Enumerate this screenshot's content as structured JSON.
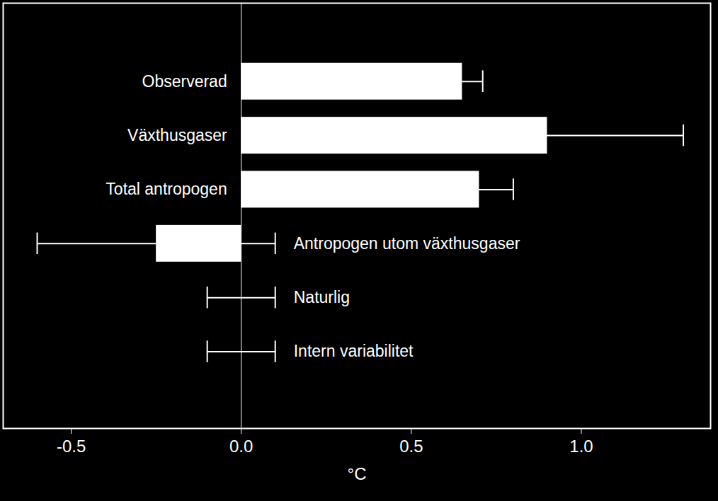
{
  "chart_data": {
    "type": "bar",
    "orientation": "horizontal",
    "categories": [
      "Observerad",
      "Växthusgaser",
      "Total antropogen",
      "Antropogen utom växthusgaser",
      "Naturlig",
      "Intern variabilitet"
    ],
    "values": [
      0.65,
      0.9,
      0.7,
      -0.25,
      0,
      null
    ],
    "error_low": [
      0.59,
      0.5,
      0.6,
      -0.6,
      -0.1,
      -0.1
    ],
    "error_high": [
      0.71,
      1.3,
      0.8,
      0.1,
      0.1,
      0.1
    ],
    "color": "#ffffff",
    "x_label": "°C",
    "xlim": [
      -0.7,
      1.38
    ],
    "xticks": [
      {
        "value": -0.5,
        "label": "-0.5"
      },
      {
        "value": 0,
        "label": "0.0"
      },
      {
        "value": 0.5,
        "label": "0.5"
      },
      {
        "value": 1,
        "label": "1.0"
      }
    ],
    "grid": false,
    "tick_labels": "x"
  }
}
